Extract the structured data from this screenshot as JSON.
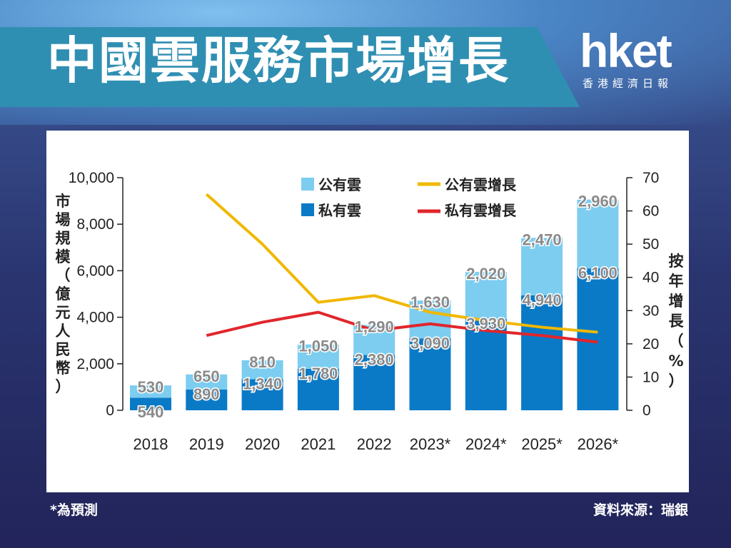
{
  "title": "中國雲服務市場增長",
  "logo": {
    "mark": "hket",
    "subtitle": "香港經濟日報"
  },
  "footnote": "*為預測",
  "source": "資料來源：瑞銀",
  "colors": {
    "public": "#7ccdf0",
    "private": "#0a7ac7",
    "public_growth": "#f0b800",
    "private_growth": "#e0262c",
    "title_band": "#2f8fb2"
  },
  "chart_data": {
    "type": "bar",
    "stacked": true,
    "categories": [
      "2018",
      "2019",
      "2020",
      "2021",
      "2022",
      "2023*",
      "2024*",
      "2025*",
      "2026*"
    ],
    "series": [
      {
        "name": "私有雲",
        "axis": "left",
        "values": [
          540,
          890,
          1340,
          1780,
          2380,
          3090,
          3930,
          4940,
          6100
        ],
        "labels": [
          "540",
          "890",
          "1,340",
          "1,780",
          "2,380",
          "3,090",
          "3,930",
          "4,940",
          "6,100"
        ]
      },
      {
        "name": "公有雲",
        "axis": "left",
        "values": [
          530,
          650,
          810,
          1050,
          1290,
          1630,
          2020,
          2470,
          2960
        ],
        "labels": [
          "530",
          "650",
          "810",
          "1,050",
          "1,290",
          "1,630",
          "2,020",
          "2,470",
          "2,960"
        ]
      }
    ],
    "lines": [
      {
        "name": "公有雲增長",
        "type": "line",
        "axis": "right",
        "values": [
          null,
          65,
          50,
          32.5,
          34.5,
          29.5,
          27,
          25,
          23.5
        ]
      },
      {
        "name": "私有雲增長",
        "type": "line",
        "axis": "right",
        "values": [
          null,
          22.5,
          26.5,
          29.5,
          24,
          26,
          24,
          22.5,
          20.5
        ]
      }
    ],
    "ylabel": "市場規模（億元人民幣）",
    "y2label": "按年增長（%）",
    "ylim": [
      0,
      10000
    ],
    "y2lim": [
      0,
      70
    ],
    "yticks": [
      "0",
      "2,000",
      "4,000",
      "6,000",
      "8,000",
      "10,000"
    ],
    "y2ticks": [
      "0",
      "10",
      "20",
      "30",
      "40",
      "50",
      "60",
      "70"
    ],
    "legend": {
      "position": "top-center",
      "entries": [
        "公有雲",
        "私有雲",
        "公有雲增長",
        "私有雲增長"
      ]
    }
  }
}
